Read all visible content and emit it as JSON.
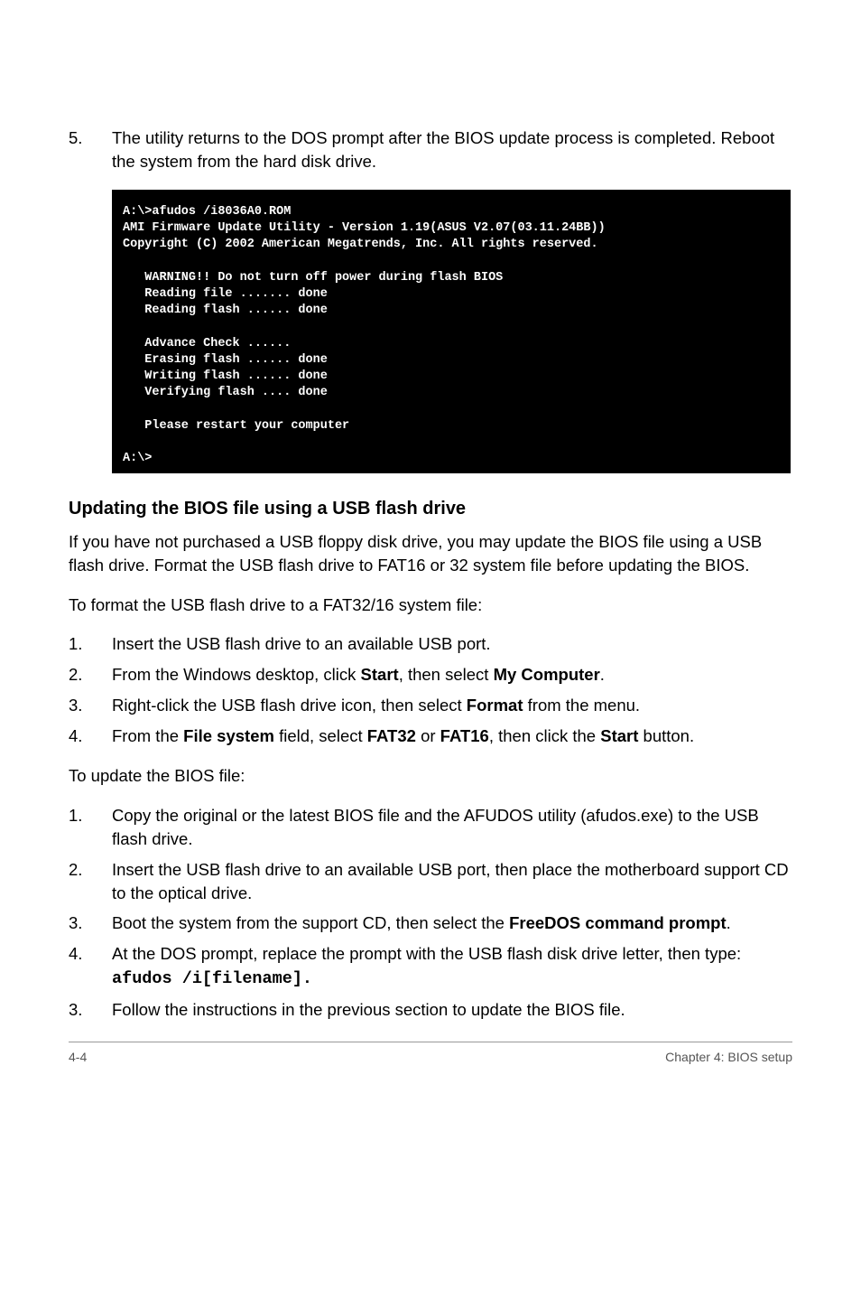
{
  "step5": {
    "num": "5.",
    "text": "The utility returns to the DOS prompt after the BIOS update process is completed. Reboot the system from the hard disk drive."
  },
  "terminal": {
    "line1": "A:\\>afudos /i8036A0.ROM",
    "line2": "AMI Firmware Update Utility - Version 1.19(ASUS V2.07(03.11.24BB))",
    "line3": "Copyright (C) 2002 American Megatrends, Inc. All rights reserved.",
    "line5": "   WARNING!! Do not turn off power during flash BIOS",
    "line6": "   Reading file ....... done",
    "line7": "   Reading flash ...... done",
    "line9": "   Advance Check ......",
    "line10": "   Erasing flash ...... done",
    "line11": "   Writing flash ...... done",
    "line12": "   Verifying flash .... done",
    "line14": "   Please restart your computer",
    "line16": "A:\\>"
  },
  "heading1": "Updating the BIOS file using a USB flash drive",
  "para1": "If you have not purchased a USB floppy disk drive, you may  update the BIOS file using a USB flash drive. Format the USB flash drive to FAT16 or 32 system file before updating the BIOS.",
  "para2": "To format the USB flash drive to a FAT32/16 system file:",
  "formatSteps": [
    {
      "num": "1.",
      "text": "Insert the USB flash drive to an available USB port."
    },
    {
      "num": "2.",
      "pre": "From the Windows desktop, click ",
      "b1": "Start",
      "mid": ", then select ",
      "b2": "My Computer",
      "post": "."
    },
    {
      "num": "3.",
      "pre": "Right-click the USB flash drive icon, then select ",
      "b1": "Format",
      "post": " from the menu."
    },
    {
      "num": "4.",
      "pre": "From the ",
      "b1": "File system",
      "mid1": " field, select ",
      "b2": "FAT32",
      "mid2": " or ",
      "b3": "FAT16",
      "mid3": ", then click the ",
      "b4": "Start",
      "post": " button."
    }
  ],
  "para3": "To update the BIOS file:",
  "updateSteps": [
    {
      "num": "1.",
      "text": "Copy the original or the latest BIOS file and the AFUDOS utility  (afudos.exe) to the USB flash drive."
    },
    {
      "num": "2.",
      "text": "Insert the USB flash drive to an available USB port, then place the motherboard support CD to the optical drive."
    },
    {
      "num": "3.",
      "pre": "Boot the system from the support CD, then select the ",
      "b1": "FreeDOS command prompt",
      "post": "."
    },
    {
      "num": "4.",
      "pre": "At the DOS prompt, replace the prompt with the USB flash disk drive letter, then type: ",
      "mono": "afudos /i[filename]."
    },
    {
      "num": "3.",
      "text": "Follow the instructions in the previous section to update the BIOS file."
    }
  ],
  "footer": {
    "left": "4-4",
    "right": "Chapter 4: BIOS setup"
  }
}
